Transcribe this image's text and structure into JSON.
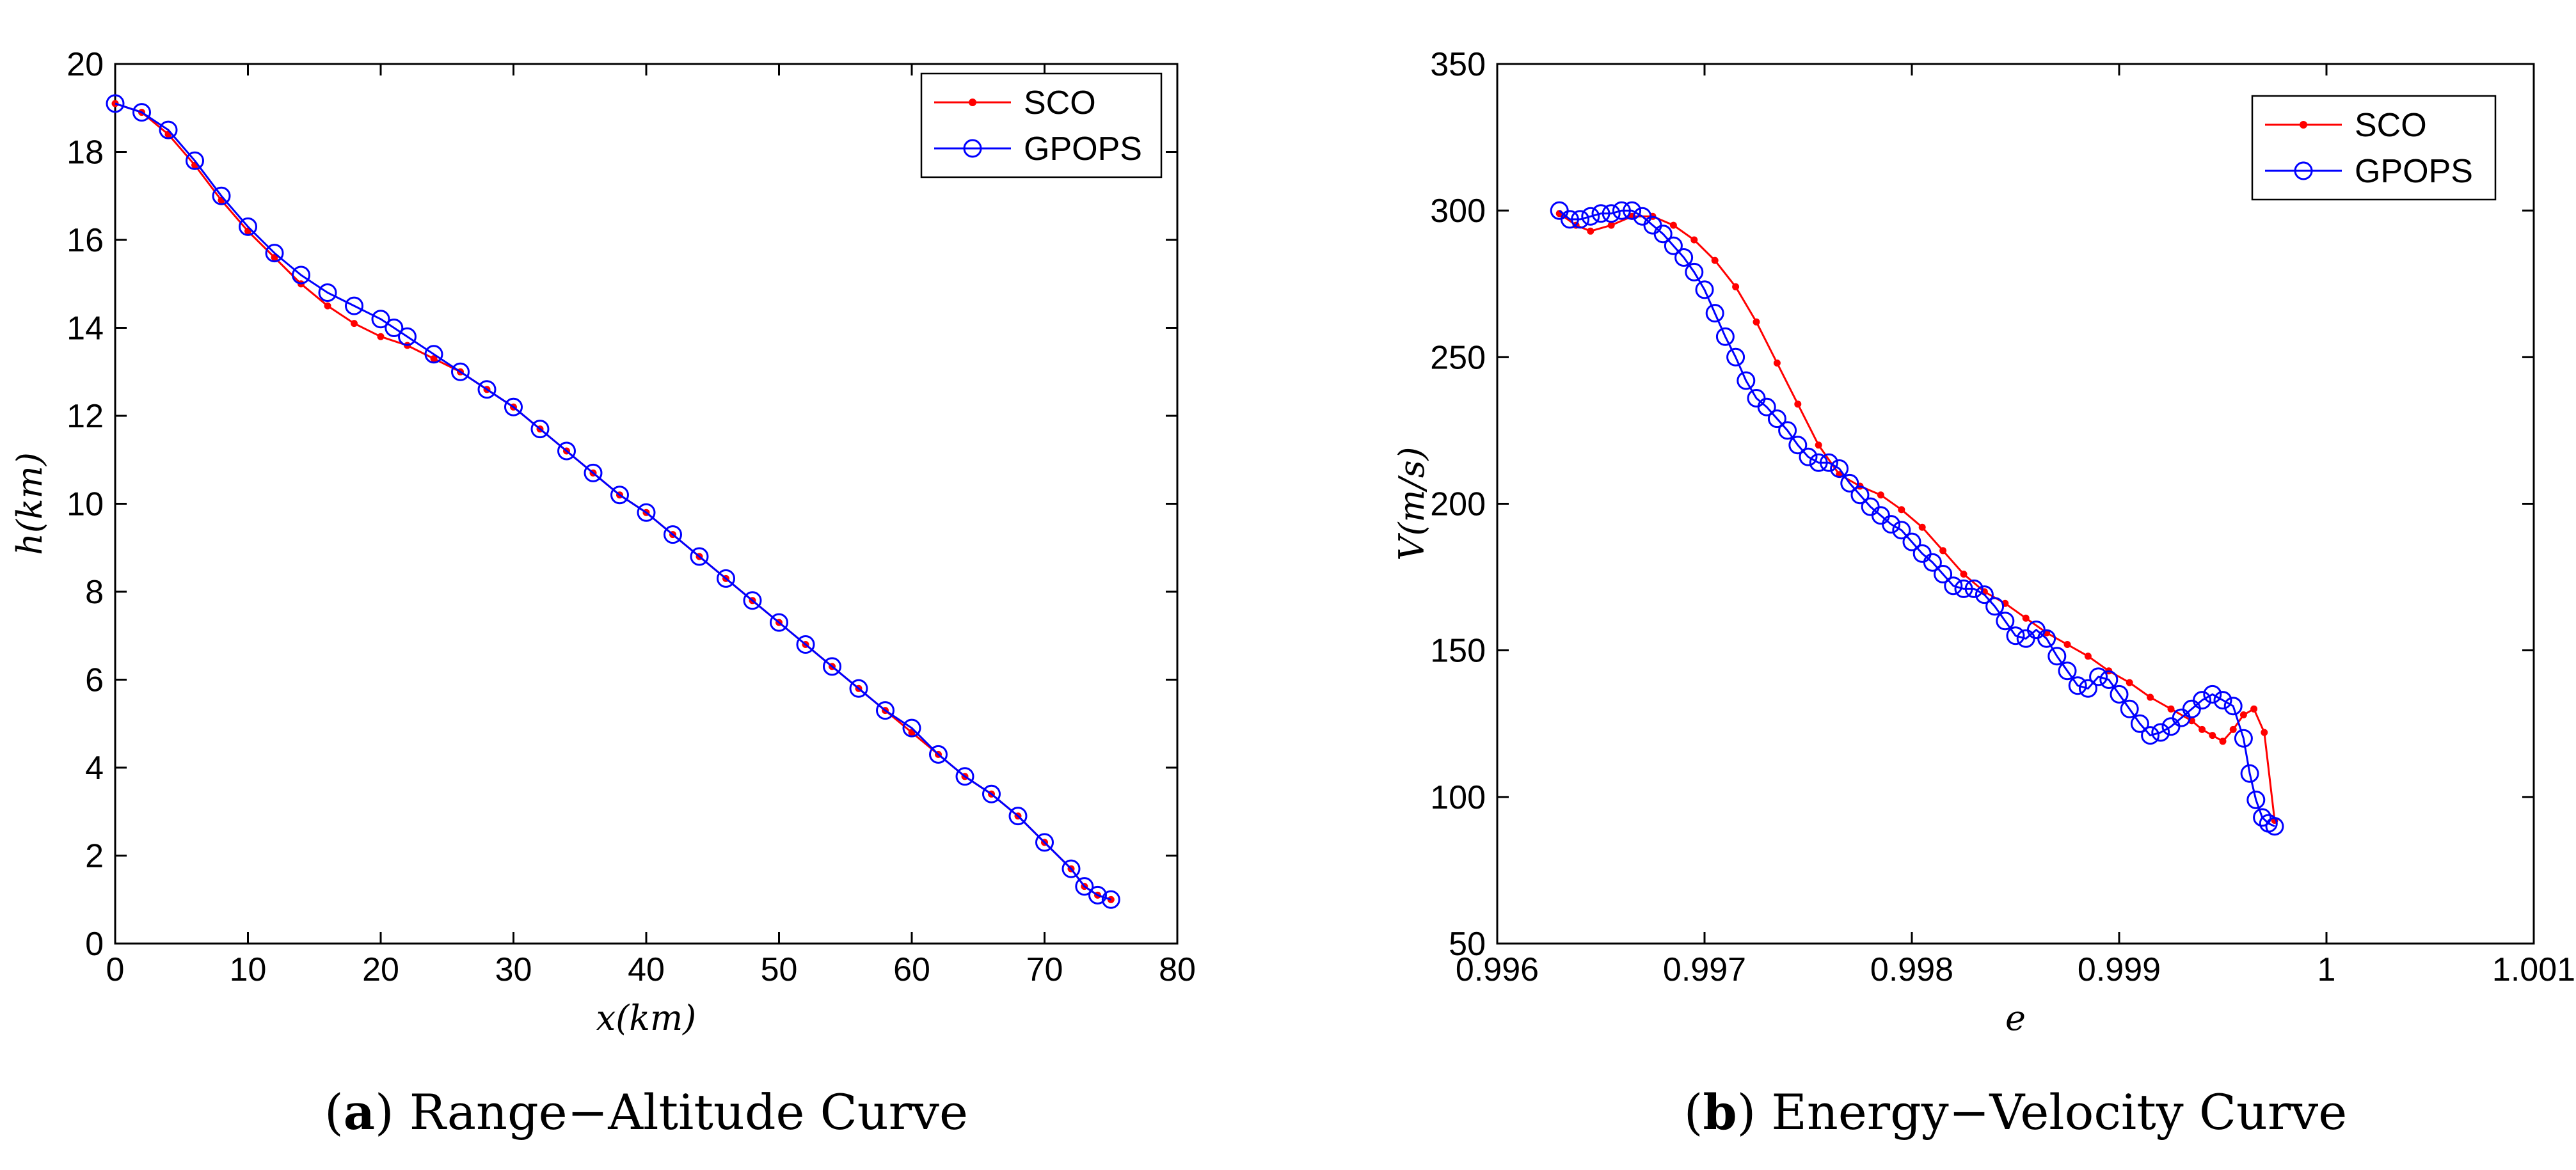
{
  "chart_data": [
    {
      "type": "line",
      "caption": {
        "letter": "a",
        "text": "Range−Altitude Curve"
      },
      "xlabel": "x(km)",
      "ylabel": "h(km)",
      "xlim": [
        0,
        80
      ],
      "ylim": [
        0,
        20
      ],
      "xticks": [
        0,
        10,
        20,
        30,
        40,
        50,
        60,
        70,
        80
      ],
      "yticks": [
        0,
        2,
        4,
        6,
        8,
        10,
        12,
        14,
        16,
        18,
        20
      ],
      "legend_position": "top-right",
      "series": [
        {
          "name": "SCO",
          "color": "#ff0000",
          "marker": "dot",
          "x": [
            0,
            2,
            4,
            6,
            8,
            10,
            12,
            14,
            16,
            18,
            20,
            22,
            24,
            26,
            28,
            30,
            32,
            34,
            36,
            38,
            40,
            42,
            44,
            46,
            48,
            50,
            52,
            54,
            56,
            58,
            60,
            62,
            64,
            66,
            68,
            70,
            72,
            73,
            74,
            75
          ],
          "y": [
            19.1,
            18.9,
            18.4,
            17.7,
            16.9,
            16.2,
            15.6,
            15.0,
            14.5,
            14.1,
            13.8,
            13.6,
            13.3,
            13.0,
            12.6,
            12.2,
            11.7,
            11.2,
            10.7,
            10.2,
            9.8,
            9.3,
            8.8,
            8.3,
            7.8,
            7.3,
            6.8,
            6.3,
            5.8,
            5.3,
            4.8,
            4.3,
            3.8,
            3.4,
            2.9,
            2.3,
            1.7,
            1.3,
            1.1,
            1.0
          ]
        },
        {
          "name": "GPOPS",
          "color": "#0000ff",
          "marker": "circle",
          "x": [
            0,
            2,
            4,
            6,
            8,
            10,
            12,
            14,
            16,
            18,
            20,
            21,
            22,
            24,
            26,
            28,
            30,
            32,
            34,
            36,
            38,
            40,
            42,
            44,
            46,
            48,
            50,
            52,
            54,
            56,
            58,
            60,
            62,
            64,
            66,
            68,
            70,
            72,
            73,
            74,
            75
          ],
          "y": [
            19.1,
            18.9,
            18.5,
            17.8,
            17.0,
            16.3,
            15.7,
            15.2,
            14.8,
            14.5,
            14.2,
            14.0,
            13.8,
            13.4,
            13.0,
            12.6,
            12.2,
            11.7,
            11.2,
            10.7,
            10.2,
            9.8,
            9.3,
            8.8,
            8.3,
            7.8,
            7.3,
            6.8,
            6.3,
            5.8,
            5.3,
            4.9,
            4.3,
            3.8,
            3.4,
            2.9,
            2.3,
            1.7,
            1.3,
            1.1,
            1.0
          ]
        }
      ]
    },
    {
      "type": "line",
      "caption": {
        "letter": "b",
        "text": "Energy−Velocity Curve"
      },
      "xlabel": "e",
      "ylabel": "V(m/s)",
      "xlim": [
        0.996,
        1.001
      ],
      "ylim": [
        50,
        350
      ],
      "xticks": [
        0.996,
        0.997,
        0.998,
        0.999,
        1,
        1.001
      ],
      "xtick_labels": [
        "0.996",
        "0.997",
        "0.998",
        "0.999",
        "1",
        "1.001"
      ],
      "yticks": [
        50,
        100,
        150,
        200,
        250,
        300,
        350
      ],
      "legend_position": "top-right",
      "series": [
        {
          "name": "SCO",
          "color": "#ff0000",
          "marker": "dot",
          "x": [
            0.9963,
            0.99638,
            0.99645,
            0.99655,
            0.99665,
            0.99675,
            0.99685,
            0.99695,
            0.99705,
            0.99715,
            0.99725,
            0.99735,
            0.99745,
            0.99755,
            0.99765,
            0.99775,
            0.99785,
            0.99795,
            0.99805,
            0.99815,
            0.99825,
            0.99835,
            0.99845,
            0.99855,
            0.99865,
            0.99875,
            0.99885,
            0.99895,
            0.99905,
            0.99915,
            0.99925,
            0.99935,
            0.9994,
            0.99945,
            0.9995,
            0.99955,
            0.9996,
            0.99965,
            0.9997,
            0.99975
          ],
          "y": [
            299,
            295,
            293,
            295,
            298,
            298,
            295,
            290,
            283,
            274,
            262,
            248,
            234,
            220,
            210,
            206,
            203,
            198,
            192,
            184,
            176,
            170,
            166,
            161,
            156,
            152,
            148,
            143,
            139,
            134,
            130,
            126,
            123,
            121,
            119,
            123,
            128,
            130,
            122,
            92
          ]
        },
        {
          "name": "GPOPS",
          "color": "#0000ff",
          "marker": "circle",
          "x": [
            0.9963,
            0.99635,
            0.9964,
            0.99645,
            0.9965,
            0.99655,
            0.9966,
            0.99665,
            0.9967,
            0.99675,
            0.9968,
            0.99685,
            0.9969,
            0.99695,
            0.997,
            0.99705,
            0.9971,
            0.99715,
            0.9972,
            0.99725,
            0.9973,
            0.99735,
            0.9974,
            0.99745,
            0.9975,
            0.99755,
            0.9976,
            0.99765,
            0.9977,
            0.99775,
            0.9978,
            0.99785,
            0.9979,
            0.99795,
            0.998,
            0.99805,
            0.9981,
            0.99815,
            0.9982,
            0.99825,
            0.9983,
            0.99835,
            0.9984,
            0.99845,
            0.9985,
            0.99855,
            0.9986,
            0.99865,
            0.9987,
            0.99875,
            0.9988,
            0.99885,
            0.9989,
            0.99895,
            0.999,
            0.99905,
            0.9991,
            0.99915,
            0.9992,
            0.99925,
            0.9993,
            0.99935,
            0.9994,
            0.99945,
            0.9995,
            0.99955,
            0.9996,
            0.99963,
            0.99966,
            0.99969,
            0.99972,
            0.99975
          ],
          "y": [
            300,
            297,
            297,
            298,
            299,
            299,
            300,
            300,
            298,
            295,
            292,
            288,
            284,
            279,
            273,
            265,
            257,
            250,
            242,
            236,
            233,
            229,
            225,
            220,
            216,
            214,
            214,
            212,
            207,
            203,
            199,
            196,
            193,
            191,
            187,
            183,
            180,
            176,
            172,
            171,
            171,
            169,
            165,
            160,
            155,
            154,
            157,
            154,
            148,
            143,
            138,
            137,
            141,
            140,
            135,
            130,
            125,
            121,
            122,
            124,
            127,
            130,
            133,
            135,
            133,
            131,
            120,
            108,
            99,
            93,
            91,
            90
          ]
        }
      ]
    }
  ]
}
